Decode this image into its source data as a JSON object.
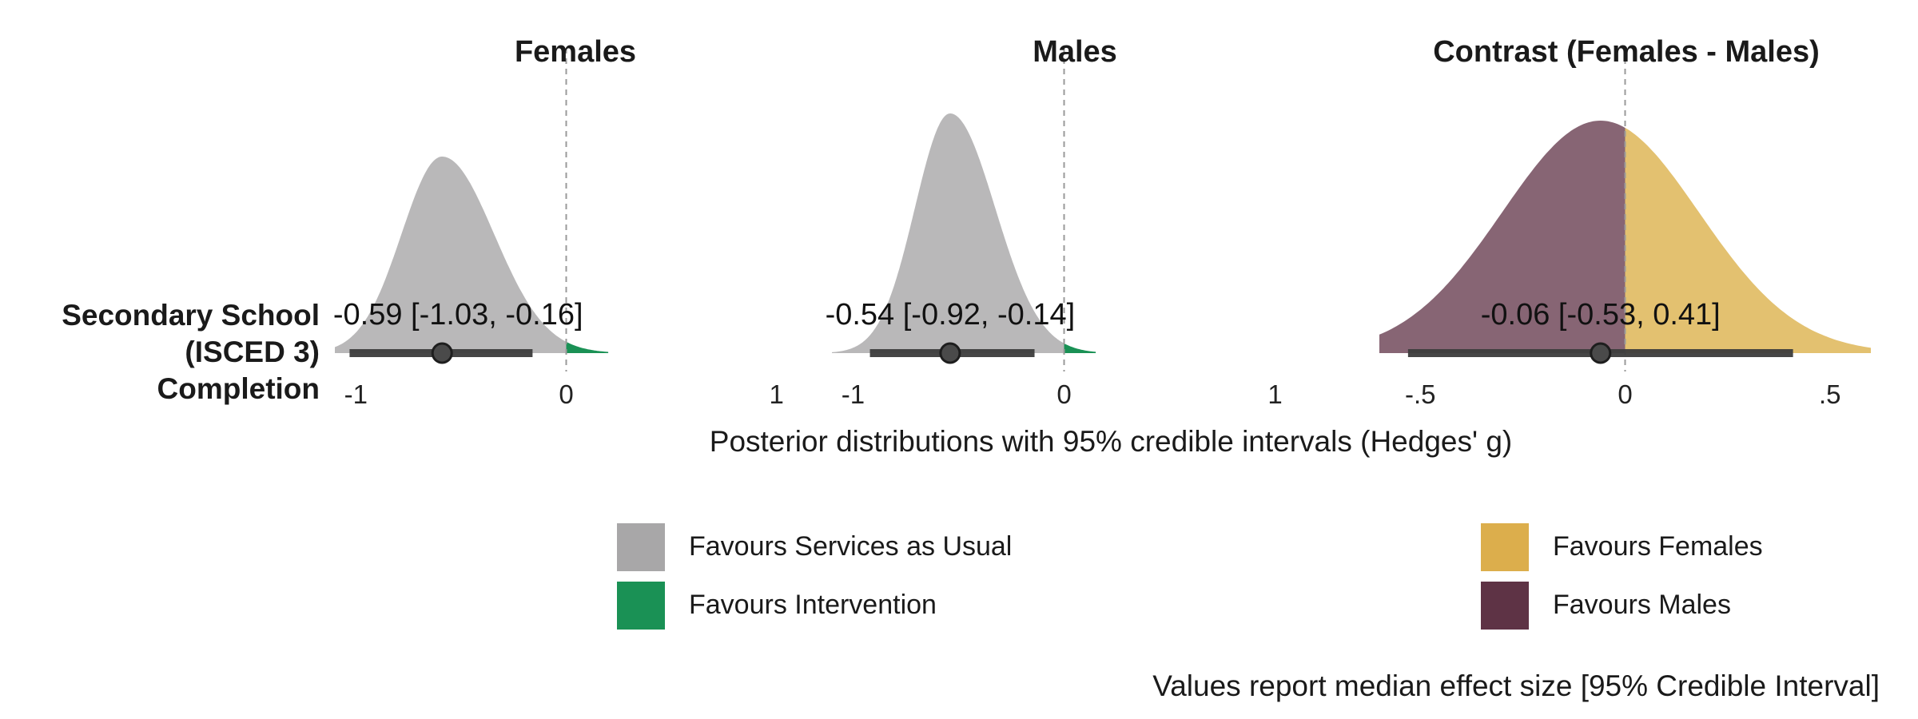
{
  "chart_data": {
    "type": "area",
    "row_label_lines": [
      "Secondary School",
      "(ISCED 3)",
      "Completion"
    ],
    "x_axis_title": "Posterior distributions with 95% credible intervals (Hedges' g)",
    "caption": "Values report median effect size [95% Credible Interval]",
    "panels": [
      {
        "title": "Females",
        "xlim": [
          -1.1,
          1.1
        ],
        "ticks": [
          {
            "v": -1,
            "label": "-1"
          },
          {
            "v": 0,
            "label": "0"
          },
          {
            "v": 1,
            "label": "1"
          }
        ],
        "density": {
          "median": -0.59,
          "sd": 0.22,
          "skew": 0.35,
          "min": -1.1,
          "max": 0.2,
          "peak_rel": 0.82
        },
        "neg_color": "#b9b8b9",
        "pos_color": "#1a9155",
        "median": -0.59,
        "ci": [
          -1.03,
          -0.16
        ],
        "label": "-0.59 [-1.03, -0.16]"
      },
      {
        "title": "Males",
        "xlim": [
          -1.1,
          1.1
        ],
        "ticks": [
          {
            "v": -1,
            "label": "-1"
          },
          {
            "v": 0,
            "label": "0"
          },
          {
            "v": 1,
            "label": "1"
          }
        ],
        "density": {
          "median": -0.54,
          "sd": 0.19,
          "skew": 0.35,
          "min": -1.1,
          "max": 0.15,
          "peak_rel": 1.0
        },
        "neg_color": "#b9b8b9",
        "pos_color": "#1a9155",
        "median": -0.54,
        "ci": [
          -0.92,
          -0.14
        ],
        "label": "-0.54 [-0.92, -0.14]"
      },
      {
        "title": "Contrast (Females - Males)",
        "xlim": [
          -0.6,
          0.6
        ],
        "ticks": [
          {
            "v": -0.5,
            "label": "-.5"
          },
          {
            "v": 0,
            "label": "0"
          },
          {
            "v": 0.5,
            "label": ".5"
          }
        ],
        "density": {
          "median": -0.06,
          "sd": 0.24,
          "skew": 0.0,
          "min": -0.6,
          "max": 0.6,
          "peak_rel": 0.97
        },
        "neg_color": "#876574",
        "pos_color": "#e3c170",
        "median": -0.06,
        "ci": [
          -0.53,
          0.41
        ],
        "label": "-0.06 [-0.53, 0.41]"
      }
    ],
    "legend": {
      "left": [
        {
          "label": "Favours Services as Usual",
          "color": "#a8a7a8"
        },
        {
          "label": "Favours Intervention",
          "color": "#1a9155"
        }
      ],
      "right": [
        {
          "label": "Favours Females",
          "color": "#dcae4c"
        },
        {
          "label": "Favours Males",
          "color": "#5e3345"
        }
      ]
    }
  }
}
